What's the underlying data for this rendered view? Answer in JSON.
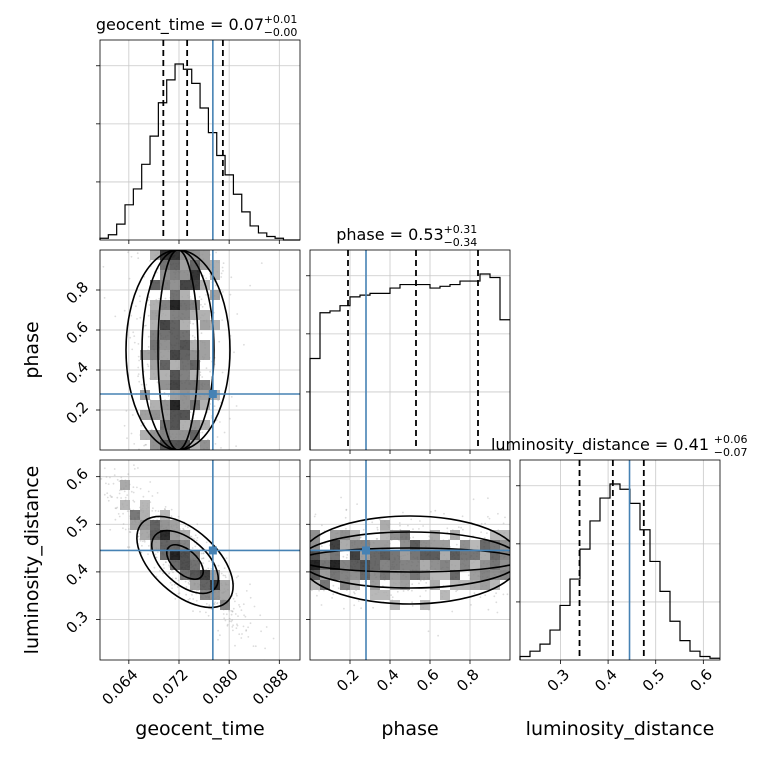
{
  "chart_data": {
    "type": "corner",
    "parameters": [
      "geocent_time",
      "phase",
      "luminosity_distance"
    ],
    "truths": {
      "geocent_time": 0.0774,
      "phase": 0.28,
      "luminosity_distance": 0.445
    },
    "colors": {
      "truth": "#4682b4",
      "contour": "#000000",
      "grid": "#c8c8c8",
      "points": "#9a9a9a"
    },
    "marginals": [
      {
        "param": "geocent_time",
        "title_main": "geocent_time = 0.07",
        "title_sup": "+0.01",
        "title_sub": "−0.00",
        "quantiles": [
          0.0695,
          0.0733,
          0.079
        ],
        "xlim": [
          0.0594,
          0.0913
        ],
        "bin_width": 0.00133,
        "counts": [
          1,
          3,
          9,
          20,
          29,
          43,
          59,
          78,
          91,
          100,
          97,
          89,
          75,
          61,
          48,
          37,
          26,
          16,
          8,
          4,
          2,
          1,
          0,
          0
        ]
      },
      {
        "param": "phase",
        "title_main": "phase = 0.53",
        "title_sup": "+0.31",
        "title_sub": "−0.34",
        "quantiles": [
          0.19,
          0.53,
          0.84
        ],
        "xlim": [
          0.0,
          1.0
        ],
        "bin_width": 0.05,
        "counts": [
          52,
          78,
          79,
          82,
          87,
          88,
          89,
          89,
          92,
          94,
          94,
          94,
          92,
          93,
          94,
          96,
          96,
          100,
          98,
          74
        ]
      },
      {
        "param": "luminosity_distance",
        "title_main": "luminosity_distance = 0.41",
        "title_sup": "+0.06",
        "title_sub": "−0.07",
        "quantiles": [
          0.34,
          0.41,
          0.475
        ],
        "xlim": [
          0.215,
          0.635
        ],
        "bin_width": 0.021,
        "counts": [
          2,
          5,
          9,
          17,
          31,
          46,
          63,
          79,
          92,
          100,
          97,
          89,
          74,
          56,
          39,
          22,
          11,
          5,
          2,
          1
        ]
      }
    ],
    "ticks": {
      "geocent_time": {
        "values": [
          0.064,
          0.072,
          0.08,
          0.088
        ],
        "labels": [
          "0.064",
          "0.072",
          "0.080",
          "0.088"
        ]
      },
      "phase": {
        "values": [
          0.2,
          0.4,
          0.6,
          0.8
        ],
        "labels": [
          "0.2",
          "0.4",
          "0.6",
          "0.8"
        ]
      },
      "luminosity_distance_x": {
        "values": [
          0.3,
          0.4,
          0.5,
          0.6
        ],
        "labels": [
          "0.3",
          "0.4",
          "0.5",
          "0.6"
        ]
      },
      "luminosity_distance_y": {
        "values": [
          0.3,
          0.4,
          0.5,
          0.6
        ],
        "labels": [
          "0.3",
          "0.4",
          "0.5",
          "0.6"
        ]
      }
    },
    "axis_labels": {
      "x": [
        "geocent_time",
        "phase",
        "luminosity_distance"
      ],
      "y": [
        "phase",
        "luminosity_distance"
      ]
    },
    "joint_ranges": {
      "geocent_time": [
        0.0594,
        0.0913
      ],
      "phase": [
        0.0,
        1.0
      ],
      "luminosity_distance_y": [
        0.215,
        0.635
      ]
    },
    "grid": true
  }
}
